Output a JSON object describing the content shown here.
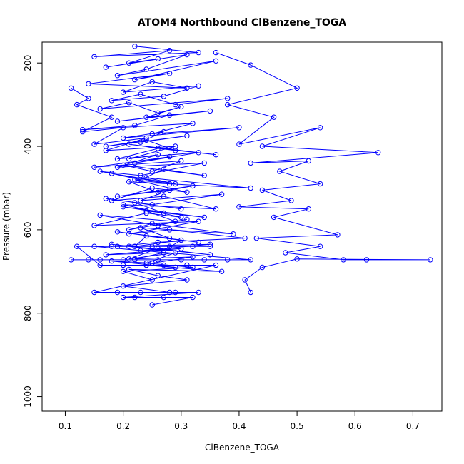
{
  "chart_data": {
    "type": "line",
    "title": "ATOM4 Northbound ClBenzene_TOGA",
    "xlabel": "ClBenzene_TOGA",
    "ylabel": "Pressure (mbar)",
    "xlim": [
      0.06,
      0.75
    ],
    "ylim": [
      1035,
      150
    ],
    "y_reversed": true,
    "grid": false,
    "legend": "none",
    "x_ticks": [
      "0.1",
      "0.2",
      "0.3",
      "0.4",
      "0.5",
      "0.6",
      "0.7"
    ],
    "y_ticks": [
      "200",
      "400",
      "600",
      "800",
      "1000"
    ],
    "x_tick_values": [
      0.1,
      0.2,
      0.3,
      0.4,
      0.5,
      0.6,
      0.7
    ],
    "y_tick_values": [
      200,
      400,
      600,
      800,
      1000
    ],
    "series": [
      {
        "color": "#0000ff",
        "marker": "open-circle",
        "x": [
          0.22,
          0.33,
          0.15,
          0.28,
          0.21,
          0.26,
          0.17,
          0.31,
          0.24,
          0.19,
          0.36,
          0.22,
          0.28,
          0.14,
          0.31,
          0.25,
          0.2,
          0.33,
          0.27,
          0.18,
          0.23,
          0.29,
          0.38,
          0.16,
          0.21,
          0.26,
          0.3,
          0.24,
          0.35,
          0.19,
          0.28,
          0.22,
          0.13,
          0.32,
          0.25,
          0.4,
          0.2,
          0.27,
          0.23,
          0.31,
          0.17,
          0.24,
          0.29,
          0.21,
          0.36,
          0.26,
          0.19,
          0.33,
          0.22,
          0.28,
          0.15,
          0.3,
          0.25,
          0.2,
          0.34,
          0.27,
          0.23,
          0.18,
          0.29,
          0.24,
          0.42,
          0.21,
          0.26,
          0.32,
          0.19,
          0.28,
          0.23,
          0.37,
          0.25,
          0.17,
          0.3,
          0.22,
          0.27,
          0.2,
          0.34,
          0.24,
          0.29,
          0.16,
          0.26,
          0.31,
          0.21,
          0.25,
          0.39,
          0.23,
          0.28,
          0.19,
          0.33,
          0.24,
          0.22,
          0.3,
          0.27,
          0.18,
          0.35,
          0.26,
          0.21,
          0.29,
          0.24,
          0.32,
          0.2,
          0.25
        ],
        "y": [
          160,
          175,
          185,
          170,
          200,
          190,
          210,
          180,
          215,
          230,
          195,
          240,
          225,
          250,
          260,
          245,
          270,
          255,
          280,
          290,
          275,
          300,
          285,
          310,
          295,
          320,
          305,
          330,
          315,
          340,
          325,
          350,
          360,
          345,
          370,
          355,
          380,
          365,
          390,
          375,
          400,
          385,
          410,
          395,
          420,
          405,
          430,
          415,
          440,
          425,
          450,
          435,
          460,
          445,
          470,
          455,
          480,
          465,
          490,
          475,
          500,
          485,
          510,
          495,
          520,
          505,
          530,
          515,
          540,
          525,
          550,
          535,
          560,
          545,
          570,
          555,
          580,
          565,
          590,
          575,
          600,
          585,
          610,
          595,
          620,
          605,
          630,
          615,
          640,
          625,
          650,
          635,
          660,
          645,
          670,
          655,
          680,
          690,
          700,
          720
        ]
      },
      {
        "color": "#0000ff",
        "marker": "open-circle",
        "x": [
          0.11,
          0.14,
          0.12,
          0.18,
          0.13,
          0.2,
          0.15,
          0.24,
          0.17,
          0.29,
          0.21,
          0.26,
          0.19,
          0.34,
          0.23,
          0.16,
          0.28,
          0.22,
          0.31,
          0.25,
          0.18,
          0.27,
          0.36,
          0.2,
          0.3,
          0.24,
          0.15,
          0.33,
          0.21,
          0.28,
          0.41,
          0.26,
          0.19,
          0.35,
          0.23,
          0.3,
          0.17,
          0.27,
          0.22,
          0.32,
          0.25,
          0.18,
          0.29,
          0.24,
          0.37,
          0.21,
          0.26,
          0.31,
          0.2,
          0.28
        ],
        "y": [
          260,
          285,
          300,
          330,
          365,
          355,
          395,
          380,
          410,
          400,
          430,
          420,
          450,
          440,
          470,
          460,
          490,
          480,
          510,
          500,
          530,
          520,
          550,
          540,
          570,
          560,
          590,
          580,
          610,
          600,
          620,
          630,
          640,
          635,
          650,
          645,
          660,
          655,
          670,
          665,
          680,
          675,
          690,
          685,
          700,
          695,
          710,
          720,
          735,
          750
        ]
      },
      {
        "color": "#0000ff",
        "marker": "open-circle",
        "x": [
          0.36,
          0.42,
          0.5,
          0.38,
          0.46,
          0.4,
          0.54,
          0.44,
          0.64,
          0.42,
          0.52,
          0.47,
          0.54,
          0.44,
          0.49,
          0.4,
          0.52,
          0.46,
          0.57,
          0.43,
          0.54,
          0.48,
          0.58,
          0.62,
          0.73,
          0.5,
          0.44,
          0.41,
          0.42
        ],
        "y": [
          175,
          205,
          260,
          300,
          330,
          395,
          355,
          400,
          415,
          440,
          435,
          460,
          490,
          505,
          530,
          545,
          550,
          570,
          612,
          620,
          640,
          655,
          672,
          672,
          672,
          670,
          690,
          720,
          750
        ]
      },
      {
        "color": "#0000ff",
        "marker": "open-circle",
        "x": [
          0.11,
          0.14,
          0.16,
          0.2,
          0.22,
          0.26,
          0.3,
          0.34,
          0.38,
          0.42,
          0.15,
          0.18,
          0.21,
          0.25,
          0.28,
          0.32,
          0.35,
          0.12,
          0.16,
          0.2,
          0.24,
          0.27,
          0.31,
          0.36,
          0.15,
          0.19,
          0.23,
          0.29,
          0.33,
          0.2,
          0.22,
          0.27,
          0.32,
          0.25
        ],
        "y": [
          672,
          672,
          672,
          672,
          672,
          672,
          672,
          672,
          672,
          672,
          640,
          640,
          640,
          640,
          640,
          640,
          640,
          640,
          685,
          685,
          685,
          685,
          685,
          685,
          750,
          750,
          750,
          750,
          750,
          762,
          762,
          762,
          762,
          780
        ]
      }
    ]
  }
}
